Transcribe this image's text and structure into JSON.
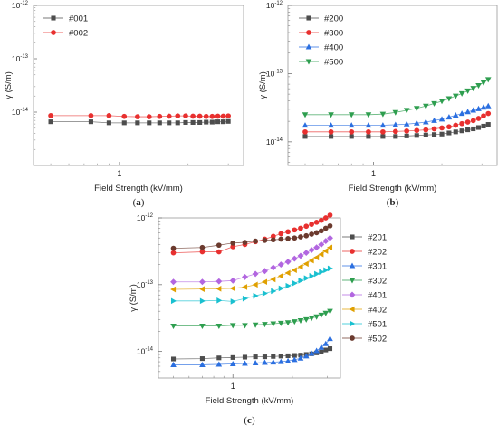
{
  "chart_data": [
    {
      "panel": "(a)",
      "type": "line",
      "xlabel": "Field Strength (kV/mm)",
      "ylabel": "γ (S/m)",
      "xscale": "log",
      "yscale": "log",
      "xlim": [
        0.42,
        3.5
      ],
      "ylim": [
        1e-15,
        1e-12
      ],
      "ytick_labels": [
        "10",
        "10",
        "10"
      ],
      "ytick_exps": [
        "-12",
        "-13",
        "-14"
      ],
      "ytick_values": [
        1e-12,
        1e-13,
        1e-14
      ],
      "xtick_labels": [
        "1"
      ],
      "xtick_values": [
        1
      ],
      "legend_position": "top-left",
      "grid": false,
      "series": [
        {
          "name": "#001",
          "color": "#4d4d4d",
          "marker": "square",
          "x": [
            0.5,
            0.75,
            0.9,
            1.05,
            1.2,
            1.35,
            1.5,
            1.65,
            1.8,
            1.95,
            2.1,
            2.25,
            2.4,
            2.55,
            2.7,
            2.85,
            3.0
          ],
          "y": [
            6.6e-15,
            6.6e-15,
            6.3e-15,
            6.3e-15,
            6.3e-15,
            6.3e-15,
            6.3e-15,
            6.3e-15,
            6.3e-15,
            6.4e-15,
            6.4e-15,
            6.4e-15,
            6.5e-15,
            6.5e-15,
            6.6e-15,
            6.6e-15,
            6.7e-15
          ]
        },
        {
          "name": "#002",
          "color": "#e8302f",
          "marker": "circle",
          "x": [
            0.5,
            0.75,
            0.9,
            1.05,
            1.2,
            1.35,
            1.5,
            1.65,
            1.8,
            1.95,
            2.1,
            2.25,
            2.4,
            2.55,
            2.7,
            2.85,
            3.0
          ],
          "y": [
            8.6e-15,
            8.6e-15,
            8.6e-15,
            8.3e-15,
            8.2e-15,
            8.2e-15,
            8.3e-15,
            8.4e-15,
            8.5e-15,
            8.5e-15,
            8.4e-15,
            8.4e-15,
            8.3e-15,
            8.3e-15,
            8.4e-15,
            8.4e-15,
            8.5e-15
          ]
        }
      ]
    },
    {
      "panel": "(b)",
      "type": "line",
      "xlabel": "Field Strength (kV/mm)",
      "ylabel": "γ (S/m)",
      "xscale": "log",
      "yscale": "log",
      "xlim": [
        0.42,
        3.5
      ],
      "ylim": [
        4.5e-15,
        1e-12
      ],
      "ytick_labels": [
        "10",
        "10",
        "10"
      ],
      "ytick_exps": [
        "-12",
        "-13",
        "-14"
      ],
      "ytick_values": [
        1e-12,
        1e-13,
        1e-14
      ],
      "xtick_labels": [
        "1"
      ],
      "xtick_values": [
        1
      ],
      "legend_position": "top-left",
      "grid": false,
      "series": [
        {
          "name": "#200",
          "color": "#4d4d4d",
          "marker": "square",
          "x": [
            0.5,
            0.65,
            0.8,
            0.95,
            1.1,
            1.25,
            1.4,
            1.55,
            1.7,
            1.85,
            2.0,
            2.15,
            2.3,
            2.45,
            2.6,
            2.75,
            2.9,
            3.05,
            3.2
          ],
          "y": [
            1.2e-14,
            1.2e-14,
            1.2e-14,
            1.2e-14,
            1.2e-14,
            1.2e-14,
            1.22e-14,
            1.24e-14,
            1.26e-14,
            1.28e-14,
            1.3e-14,
            1.35e-14,
            1.4e-14,
            1.45e-14,
            1.5e-14,
            1.55e-14,
            1.62e-14,
            1.7e-14,
            1.8e-14
          ]
        },
        {
          "name": "#300",
          "color": "#e8302f",
          "marker": "circle",
          "x": [
            0.5,
            0.65,
            0.8,
            0.95,
            1.1,
            1.25,
            1.4,
            1.55,
            1.7,
            1.85,
            2.0,
            2.15,
            2.3,
            2.45,
            2.6,
            2.75,
            2.9,
            3.05,
            3.2
          ],
          "y": [
            1.4e-14,
            1.4e-14,
            1.4e-14,
            1.4e-14,
            1.4e-14,
            1.42e-14,
            1.44e-14,
            1.47e-14,
            1.5e-14,
            1.55e-14,
            1.6e-14,
            1.66e-14,
            1.75e-14,
            1.85e-14,
            1.95e-14,
            2.05e-14,
            2.2e-14,
            2.4e-14,
            2.6e-14
          ]
        },
        {
          "name": "#400",
          "color": "#2b6fe0",
          "marker": "triangle-up",
          "x": [
            0.5,
            0.65,
            0.8,
            0.95,
            1.1,
            1.25,
            1.4,
            1.55,
            1.7,
            1.85,
            2.0,
            2.15,
            2.3,
            2.45,
            2.6,
            2.75,
            2.9,
            3.05,
            3.2
          ],
          "y": [
            1.75e-14,
            1.75e-14,
            1.75e-14,
            1.75e-14,
            1.75e-14,
            1.78e-14,
            1.82e-14,
            1.88e-14,
            1.95e-14,
            2.05e-14,
            2.15e-14,
            2.3e-14,
            2.45e-14,
            2.6e-14,
            2.75e-14,
            2.9e-14,
            3.05e-14,
            3.2e-14,
            3.35e-14
          ]
        },
        {
          "name": "#500",
          "color": "#2e9e4f",
          "marker": "triangle-down",
          "x": [
            0.5,
            0.65,
            0.8,
            0.95,
            1.1,
            1.25,
            1.4,
            1.55,
            1.7,
            1.85,
            2.0,
            2.15,
            2.3,
            2.45,
            2.6,
            2.75,
            2.9,
            3.05,
            3.2
          ],
          "y": [
            2.5e-14,
            2.5e-14,
            2.5e-14,
            2.5e-14,
            2.55e-14,
            2.7e-14,
            2.9e-14,
            3.1e-14,
            3.35e-14,
            3.65e-14,
            3.95e-14,
            4.3e-14,
            4.7e-14,
            5.1e-14,
            5.6e-14,
            6.1e-14,
            6.7e-14,
            7.4e-14,
            8.2e-14
          ]
        }
      ]
    },
    {
      "panel": "(c)",
      "type": "line",
      "xlabel": "Field Strength (kV/mm)",
      "ylabel": "γ (S/m)",
      "xscale": "log",
      "yscale": "log",
      "xlim": [
        0.42,
        3.5
      ],
      "ylim": [
        4e-15,
        1e-12
      ],
      "ytick_labels": [
        "10",
        "10",
        "10"
      ],
      "ytick_exps": [
        "-12",
        "-13",
        "-14"
      ],
      "ytick_values": [
        1e-12,
        1e-13,
        1e-14
      ],
      "xtick_labels": [
        "1"
      ],
      "xtick_values": [
        1
      ],
      "legend_position": "right",
      "grid": false,
      "series": [
        {
          "name": "#201",
          "color": "#4d4d4d",
          "marker": "square",
          "x": [
            0.5,
            0.7,
            0.85,
            1.0,
            1.15,
            1.3,
            1.45,
            1.6,
            1.75,
            1.9,
            2.05,
            2.2,
            2.35,
            2.5,
            2.65,
            2.8,
            2.95,
            3.1
          ],
          "y": [
            7.7e-15,
            7.8e-15,
            8e-15,
            8.1e-15,
            8.2e-15,
            8.3e-15,
            8.3e-15,
            8.4e-15,
            8.5e-15,
            8.6e-15,
            8.7e-15,
            8.8e-15,
            9e-15,
            9.2e-15,
            9.5e-15,
            9.8e-15,
            1.05e-14,
            1.1e-14
          ]
        },
        {
          "name": "#202",
          "color": "#e8302f",
          "marker": "circle",
          "x": [
            0.5,
            0.7,
            0.85,
            1.0,
            1.15,
            1.3,
            1.45,
            1.6,
            1.75,
            1.9,
            2.05,
            2.2,
            2.35,
            2.5,
            2.65,
            2.8,
            2.95,
            3.1
          ],
          "y": [
            3e-13,
            3.1e-13,
            3.1e-13,
            3.7e-13,
            4e-13,
            4.4e-13,
            4.8e-13,
            5.3e-13,
            5.8e-13,
            6.2e-13,
            6.6e-13,
            7e-13,
            7.5e-13,
            8e-13,
            8.6e-13,
            9.2e-13,
            1e-12,
            1.1e-12
          ]
        },
        {
          "name": "#301",
          "color": "#2b6fe0",
          "marker": "triangle-up",
          "x": [
            0.5,
            0.7,
            0.85,
            1.0,
            1.15,
            1.3,
            1.45,
            1.6,
            1.75,
            1.9,
            2.05,
            2.2,
            2.35,
            2.5,
            2.65,
            2.8,
            2.95,
            3.1
          ],
          "y": [
            6.3e-15,
            6.3e-15,
            6.4e-15,
            6.5e-15,
            6.6e-15,
            6.7e-15,
            6.8e-15,
            6.9e-15,
            7e-15,
            7.2e-15,
            7.5e-15,
            7.9e-15,
            8.5e-15,
            9.3e-15,
            1.02e-14,
            1.15e-14,
            1.3e-14,
            1.55e-14
          ]
        },
        {
          "name": "#302",
          "color": "#2e9e4f",
          "marker": "triangle-down",
          "x": [
            0.5,
            0.7,
            0.85,
            1.0,
            1.15,
            1.3,
            1.45,
            1.6,
            1.75,
            1.9,
            2.05,
            2.2,
            2.35,
            2.5,
            2.65,
            2.8,
            2.95,
            3.1
          ],
          "y": [
            2.4e-14,
            2.4e-14,
            2.4e-14,
            2.45e-14,
            2.45e-14,
            2.5e-14,
            2.55e-14,
            2.6e-14,
            2.65e-14,
            2.7e-14,
            2.8e-14,
            2.9e-14,
            3e-14,
            3.15e-14,
            3.3e-14,
            3.5e-14,
            3.75e-14,
            4e-14
          ]
        },
        {
          "name": "#401",
          "color": "#b266e0",
          "marker": "diamond",
          "x": [
            0.5,
            0.7,
            0.85,
            1.0,
            1.15,
            1.3,
            1.45,
            1.6,
            1.75,
            1.9,
            2.05,
            2.2,
            2.35,
            2.5,
            2.65,
            2.8,
            2.95,
            3.1
          ],
          "y": [
            1.1e-13,
            1.1e-13,
            1.12e-13,
            1.15e-13,
            1.3e-13,
            1.45e-13,
            1.6e-13,
            1.8e-13,
            2e-13,
            2.2e-13,
            2.45e-13,
            2.7e-13,
            3e-13,
            3.3e-13,
            3.6e-13,
            4e-13,
            4.5e-13,
            5e-13
          ]
        },
        {
          "name": "#402",
          "color": "#e0a000",
          "marker": "triangle-left",
          "x": [
            0.5,
            0.7,
            0.85,
            1.0,
            1.15,
            1.3,
            1.45,
            1.6,
            1.75,
            1.9,
            2.05,
            2.2,
            2.35,
            2.5,
            2.65,
            2.8,
            2.95,
            3.1
          ],
          "y": [
            8.5e-14,
            8.6e-14,
            8.7e-14,
            8.8e-14,
            9.2e-14,
            1e-13,
            1.1e-13,
            1.2e-13,
            1.35e-13,
            1.5e-13,
            1.65e-13,
            1.85e-13,
            2.05e-13,
            2.3e-13,
            2.55e-13,
            2.85e-13,
            3.2e-13,
            3.6e-13
          ]
        },
        {
          "name": "#501",
          "color": "#19c0d0",
          "marker": "triangle-right",
          "x": [
            0.5,
            0.7,
            0.85,
            1.0,
            1.15,
            1.3,
            1.45,
            1.6,
            1.75,
            1.9,
            2.05,
            2.2,
            2.35,
            2.5,
            2.65,
            2.8,
            2.95,
            3.1
          ],
          "y": [
            5.7e-14,
            5.7e-14,
            5.8e-14,
            5.6e-14,
            6.2e-14,
            6.8e-14,
            7.4e-14,
            8e-14,
            8.8e-14,
            9.6e-14,
            1.05e-13,
            1.15e-13,
            1.25e-13,
            1.35e-13,
            1.45e-13,
            1.55e-13,
            1.65e-13,
            1.75e-13
          ]
        },
        {
          "name": "#502",
          "color": "#6b3a2e",
          "marker": "circle",
          "x": [
            0.5,
            0.7,
            0.85,
            1.0,
            1.15,
            1.3,
            1.45,
            1.6,
            1.75,
            1.9,
            2.05,
            2.2,
            2.35,
            2.5,
            2.65,
            2.8,
            2.95,
            3.1
          ],
          "y": [
            3.5e-13,
            3.6e-13,
            3.9e-13,
            4.2e-13,
            4.3e-13,
            4.5e-13,
            4.6e-13,
            4.7e-13,
            4.8e-13,
            4.9e-13,
            5e-13,
            5.2e-13,
            5.4e-13,
            5.7e-13,
            6e-13,
            6.4e-13,
            7e-13,
            7.6e-13
          ]
        }
      ]
    }
  ]
}
